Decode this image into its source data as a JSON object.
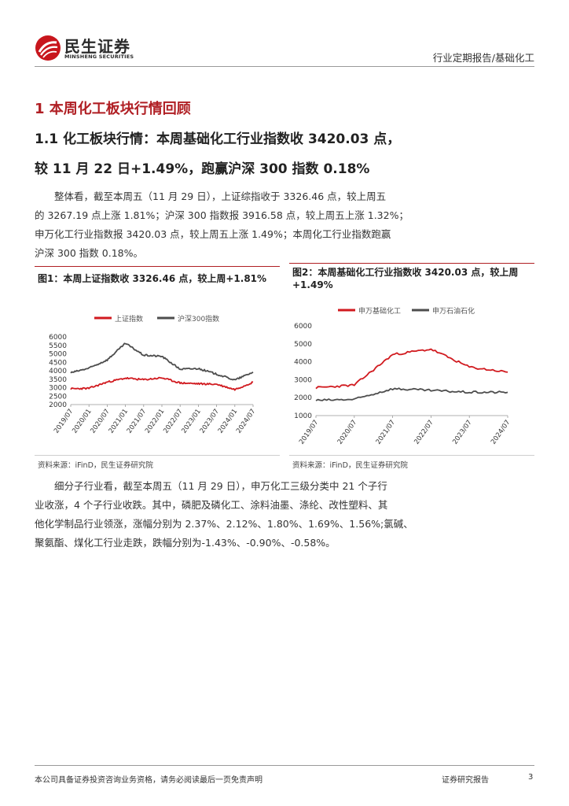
{
  "header": {
    "logo_cn": "民生证券",
    "logo_en": "MINSHENG SECURITIES",
    "report_type": "行业定期报告/基础化工"
  },
  "section": {
    "h1": "1 本周化工板块行情回顾",
    "h2_line1": "1.1 化工板块行情：本周基础化工行业指数收 3420.03 点，",
    "h2_line2": "较 11 月 22 日+1.49%，跑赢沪深 300 指数 0.18%"
  },
  "paragraph1": [
    "整体看，截至本周五（11 月 29 日），上证综指收于 3326.46 点，较上周五",
    "的 3267.19 点上涨 1.81%；沪深 300 指数报 3916.58 点，较上周五上涨 1.32%；",
    "申万化工行业指数报 3420.03 点，较上周五上涨 1.49%；本周化工行业指数跑赢",
    "沪深 300 指数 0.18%。"
  ],
  "figure1": {
    "title": "图1：本周上证指数收 3326.46 点，较上周+1.81%",
    "source": "资料来源：iFinD，民生证券研究院"
  },
  "figure2": {
    "title_line1": "图2：本周基础化工行业指数收  3420.03 点，较上周",
    "title_line2": "+1.49%",
    "source": "资料来源：iFinD，民生证券研究院"
  },
  "paragraph2": [
    "细分子行业看，截至本周五（11 月 29 日），申万化工三级分类中 21 个子行",
    "业收涨，4 个子行业收跌。其中，磷肥及磷化工、涂料油墨、涤纶、改性塑料、其",
    "他化学制品行业领涨，涨幅分别为 2.37%、2.12%、1.80%、1.69%、1.56%;氯碱、",
    "聚氨酯、煤化工行业走跌，跌幅分别为-1.43%、-0.90%、-0.58%。"
  ],
  "footer": {
    "disclaimer": "本公司具备证券投资咨询业务资格，请务必阅读最后一页免责声明",
    "label": "证券研究报告",
    "page": "3"
  },
  "colors": {
    "brand_red": "#b01f24",
    "series_red": "#d11a1f",
    "series_gray": "#4d4d4d"
  },
  "chart_data": [
    {
      "type": "line",
      "title": "",
      "x": [
        "2019/07",
        "2020/01",
        "2020/07",
        "2021/01",
        "2021/07",
        "2022/01",
        "2022/07",
        "2023/01",
        "2023/07",
        "2024/01",
        "2024/07"
      ],
      "ylim": [
        2000,
        6000
      ],
      "yticks": [
        2000,
        2500,
        3000,
        3500,
        4000,
        4500,
        5000,
        5500,
        6000
      ],
      "legend_position": "top",
      "series": [
        {
          "name": "上证指数",
          "color": "#d11a1f",
          "values": [
            2930,
            2960,
            3330,
            3560,
            3470,
            3580,
            3280,
            3230,
            3200,
            2890,
            3326
          ]
        },
        {
          "name": "沪深300指数",
          "color": "#4d4d4d",
          "values": [
            3880,
            4150,
            4640,
            5620,
            4920,
            4850,
            4090,
            4130,
            3800,
            3450,
            3917
          ]
        }
      ]
    },
    {
      "type": "line",
      "title": "",
      "x": [
        "2019/07",
        "2020/07",
        "2021/07",
        "2022/07",
        "2023/07",
        "2024/07"
      ],
      "ylim": [
        1000,
        6000
      ],
      "yticks": [
        1000,
        2000,
        3000,
        4000,
        5000,
        6000
      ],
      "legend_position": "top",
      "series": [
        {
          "name": "申万基础化工",
          "color": "#d11a1f",
          "values": [
            2550,
            2700,
            4400,
            4700,
            3700,
            3420
          ]
        },
        {
          "name": "申万石油石化",
          "color": "#4d4d4d",
          "values": [
            1850,
            1900,
            2500,
            2400,
            2300,
            2300
          ]
        }
      ]
    }
  ]
}
